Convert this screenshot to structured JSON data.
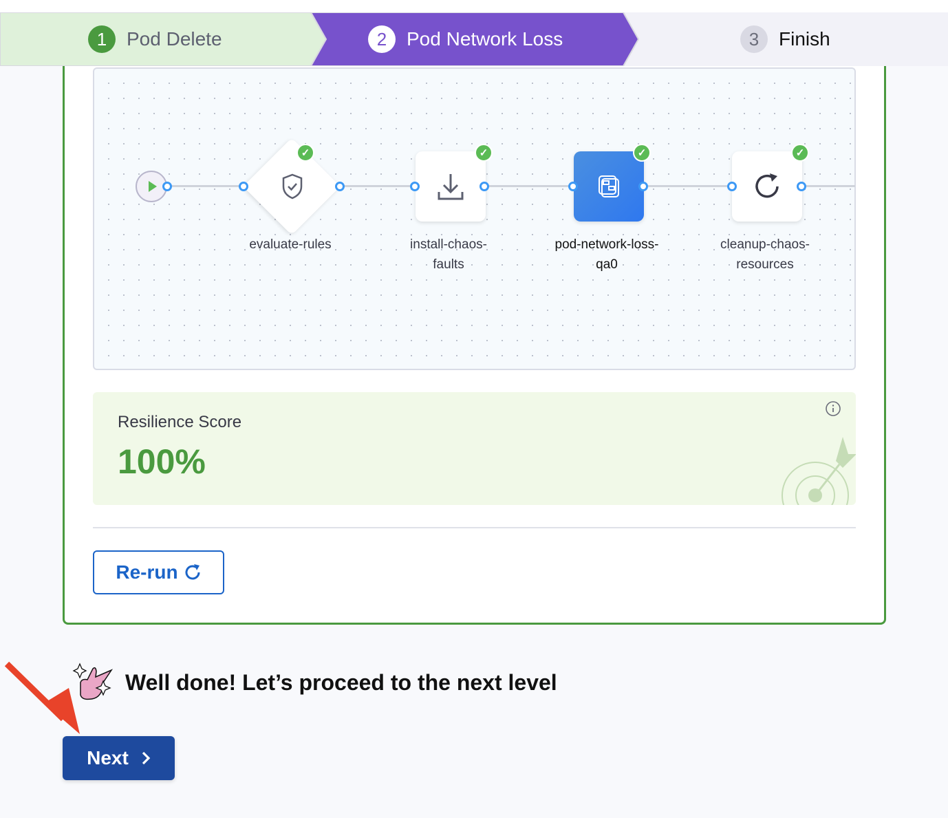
{
  "stepper": {
    "steps": [
      {
        "number": "1",
        "label": "Pod Delete",
        "state": "completed"
      },
      {
        "number": "2",
        "label": "Pod Network Loss",
        "state": "active"
      },
      {
        "number": "3",
        "label": "Finish",
        "state": "pending"
      }
    ]
  },
  "pipeline": {
    "nodes": [
      {
        "label_line1": "evaluate-rules",
        "label_line2": "",
        "icon": "shield-check-icon",
        "status": "success"
      },
      {
        "label_line1": "install-chaos-",
        "label_line2": "faults",
        "icon": "download-icon",
        "status": "success"
      },
      {
        "label_line1": "pod-network-loss-",
        "label_line2": "qa0",
        "icon": "chaos-fault-icon",
        "status": "success",
        "selected": true
      },
      {
        "label_line1": "cleanup-chaos-",
        "label_line2": "resources",
        "icon": "refresh-icon",
        "status": "success"
      }
    ]
  },
  "resilience": {
    "title": "Resilience Score",
    "value": "100%"
  },
  "rerun_label": "Re-run",
  "message": "Well done! Let’s proceed to the next level",
  "next_label": "Next",
  "colors": {
    "accent_purple": "#7752cc",
    "success_green": "#4a9a3f",
    "primary_blue": "#1e4a9e",
    "link_blue": "#1b64c8"
  }
}
